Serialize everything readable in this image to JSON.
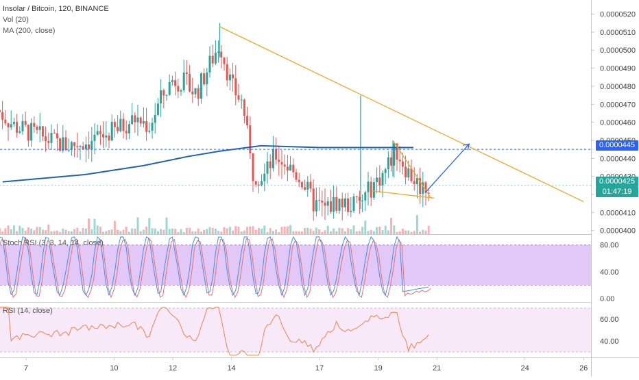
{
  "header": {
    "symbol_line": "Insolar / Bitcoin, 120, BINANCE",
    "vol_label": "Vol (20)",
    "ma_label": "MA (200, close)"
  },
  "colors": {
    "up": "#26a69a",
    "down": "#ef5350",
    "ma": "#1e63b0",
    "trendline": "#f5a623",
    "arrow": "#2962ff",
    "stoch_k": "#3d8ee8",
    "stoch_d": "#f06b6b",
    "rsi": "#f0834a",
    "stoch_band": "#e1c8f7",
    "rsi_band": "#f7e9f8"
  },
  "tags": {
    "ma_value": "0.0000445",
    "last_price": "0.0000425",
    "countdown": "01:47:19"
  },
  "stoch_label": "Stoch RSI (3, 3, 14, 14, close)",
  "rsi_label": "RSI (14, close)",
  "chart_data": [
    {
      "type": "candlestick",
      "title": "Insolar / Bitcoin, 120, BINANCE",
      "x_ticks": [
        "7",
        "10",
        "12",
        "14",
        "17",
        "19",
        "21",
        "24",
        "26"
      ],
      "y_ticks": [
        "0.0000520",
        "0.0000510",
        "0.0000500",
        "0.0000490",
        "0.0000480",
        "0.0000470",
        "0.0000460",
        "0.0000450",
        "0.0000440",
        "0.0000430",
        "0.0000420",
        "0.0000410",
        "0.0000400"
      ],
      "ylim": [
        3.98e-05,
        5.24e-05
      ],
      "series": [
        {
          "name": "MA (200, close)",
          "type": "line",
          "points_day": [
            [
              6.2,
              4.27e-05
            ],
            [
              9,
              4.31e-05
            ],
            [
              11,
              4.36e-05
            ],
            [
              12.5,
              4.41e-05
            ],
            [
              13.6,
              4.44e-05
            ],
            [
              15,
              4.47e-05
            ],
            [
              17,
              4.46e-05
            ],
            [
              19,
              4.46e-05
            ],
            [
              20.2,
              4.46e-05
            ]
          ]
        },
        {
          "name": "Vol (20)",
          "type": "volume"
        }
      ],
      "annotations": {
        "descending_trendline": [
          [
            13.6,
            5.13e-05
          ],
          [
            26,
            4.16e-05
          ]
        ],
        "wedge_upper": [
          [
            19.5,
            4.5e-05
          ],
          [
            20.8,
            4.18e-05
          ]
        ],
        "wedge_lower": [
          [
            18.8,
            4.22e-05
          ],
          [
            20.9,
            4.18e-05
          ]
        ],
        "projection_arrow": [
          [
            20.6,
            4.21e-05
          ],
          [
            22.1,
            4.48e-05
          ]
        ],
        "ma_level_dashed": 4.45e-05,
        "last_price_level": 4.25e-05
      }
    },
    {
      "type": "line",
      "title": "Stoch RSI (3, 3, 14, 14, close)",
      "y_ticks": [
        "80.00",
        "40.00",
        "0.00"
      ],
      "ylim": [
        -5,
        95
      ],
      "band": [
        20,
        80
      ],
      "series": [
        {
          "name": "K"
        },
        {
          "name": "D"
        }
      ]
    },
    {
      "type": "line",
      "title": "RSI (14, close)",
      "y_ticks": [
        "60.00",
        "40.00"
      ],
      "ylim": [
        25,
        75
      ],
      "band": [
        30,
        70
      ],
      "series": [
        {
          "name": "RSI"
        }
      ]
    }
  ]
}
